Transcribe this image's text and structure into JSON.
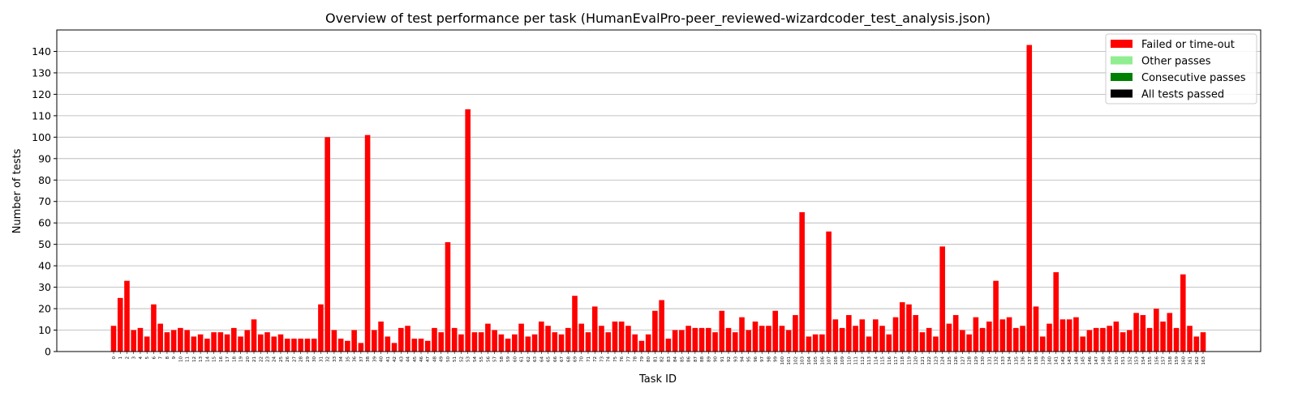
{
  "chart_data": {
    "type": "bar",
    "title": "Overview of test performance per task (HumanEvalPro-peer_reviewed-wizardcoder_test_analysis.json)",
    "xlabel": "Task ID",
    "ylabel": "Number of tests",
    "ylim": [
      0,
      150
    ],
    "yticks": [
      0,
      10,
      20,
      30,
      40,
      50,
      60,
      70,
      80,
      90,
      100,
      110,
      120,
      130,
      140
    ],
    "grid": "y",
    "legend_position": "top-right",
    "legend": [
      {
        "label": "Failed or time-out",
        "color": "#ff0000"
      },
      {
        "label": "Other passes",
        "color": "#90ee90"
      },
      {
        "label": "Consecutive passes",
        "color": "#008000"
      },
      {
        "label": "All tests passed",
        "color": "#000000"
      }
    ],
    "categories": [
      "0",
      "1",
      "2",
      "3",
      "4",
      "5",
      "6",
      "7",
      "8",
      "9",
      "10",
      "11",
      "12",
      "13",
      "14",
      "15",
      "16",
      "17",
      "18",
      "19",
      "20",
      "21",
      "22",
      "23",
      "24",
      "25",
      "26",
      "27",
      "28",
      "29",
      "30",
      "31",
      "32",
      "33",
      "34",
      "35",
      "36",
      "37",
      "38",
      "39",
      "40",
      "41",
      "42",
      "43",
      "44",
      "45",
      "46",
      "47",
      "48",
      "49",
      "50",
      "51",
      "52",
      "53",
      "54",
      "55",
      "56",
      "57",
      "58",
      "59",
      "60",
      "61",
      "62",
      "63",
      "64",
      "65",
      "66",
      "67",
      "68",
      "69",
      "70",
      "71",
      "72",
      "73",
      "74",
      "75",
      "76",
      "77",
      "78",
      "79",
      "80",
      "81",
      "82",
      "83",
      "84",
      "85",
      "86",
      "87",
      "88",
      "89",
      "90",
      "91",
      "92",
      "93",
      "94",
      "95",
      "96",
      "97",
      "98",
      "99",
      "100",
      "101",
      "102",
      "103",
      "104",
      "105",
      "106",
      "107",
      "108",
      "109",
      "110",
      "111",
      "112",
      "113",
      "114",
      "115",
      "116",
      "117",
      "118",
      "119",
      "120",
      "121",
      "122",
      "123",
      "124",
      "125",
      "126",
      "127",
      "128",
      "129",
      "130",
      "131",
      "132",
      "133",
      "134",
      "135",
      "136",
      "137",
      "138",
      "139",
      "140",
      "141",
      "142",
      "143",
      "144",
      "145",
      "146",
      "147",
      "148",
      "149",
      "150",
      "151",
      "152",
      "153",
      "154",
      "155",
      "156",
      "157",
      "158",
      "159",
      "160",
      "161",
      "162",
      "163"
    ],
    "series": [
      {
        "name": "Failed or time-out",
        "color": "#ff0000",
        "values": [
          12,
          25,
          33,
          10,
          11,
          7,
          22,
          13,
          9,
          10,
          11,
          10,
          7,
          8,
          6,
          9,
          9,
          8,
          11,
          7,
          10,
          15,
          8,
          9,
          7,
          8,
          6,
          6,
          6,
          6,
          6,
          22,
          100,
          10,
          6,
          5,
          10,
          4,
          101,
          10,
          14,
          7,
          4,
          11,
          12,
          6,
          6,
          5,
          11,
          9,
          51,
          11,
          8,
          113,
          9,
          9,
          13,
          10,
          8,
          6,
          8,
          13,
          7,
          8,
          14,
          12,
          9,
          8,
          11,
          26,
          13,
          9,
          21,
          12,
          9,
          14,
          14,
          12,
          8,
          5,
          8,
          19,
          24,
          6,
          10,
          10,
          12,
          11,
          11,
          11,
          9,
          19,
          11,
          9,
          16,
          10,
          14,
          12,
          12,
          19,
          12,
          10,
          17,
          65,
          7,
          8,
          8,
          56,
          15,
          11,
          17,
          12,
          15,
          7,
          15,
          12,
          8,
          16,
          23,
          22,
          17,
          9,
          11,
          7,
          49,
          13,
          17,
          10,
          8,
          16,
          11,
          14,
          33,
          15,
          16,
          11,
          12,
          143,
          21,
          7,
          13,
          37,
          15,
          15,
          16,
          7,
          10,
          11,
          11,
          12,
          14,
          9,
          10,
          18,
          17,
          11,
          20,
          14,
          18,
          11,
          36,
          12,
          7,
          9
        ]
      }
    ]
  }
}
